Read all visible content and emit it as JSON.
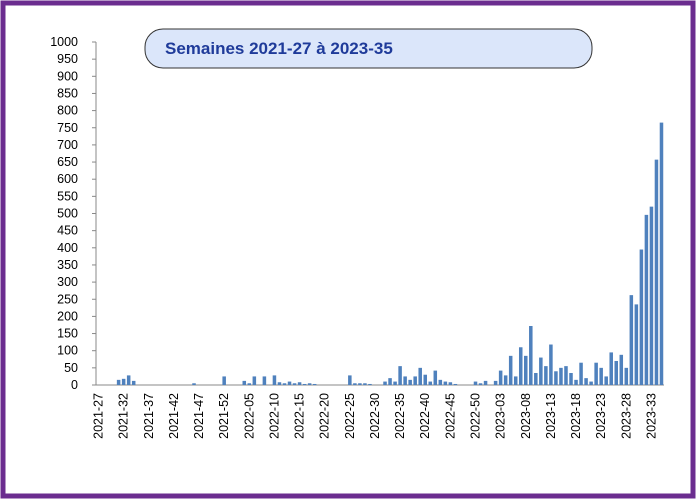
{
  "chart_data": {
    "type": "bar",
    "title": "Semaines 2021-27 à 2023-35",
    "categories": [
      "2021-27",
      null,
      null,
      null,
      null,
      "2021-32",
      null,
      null,
      null,
      null,
      "2021-37",
      null,
      null,
      null,
      null,
      "2021-42",
      null,
      null,
      null,
      null,
      "2021-47",
      null,
      null,
      null,
      null,
      "2021-52",
      null,
      null,
      null,
      null,
      "2022-05",
      null,
      null,
      null,
      null,
      "2022-10",
      null,
      null,
      null,
      null,
      "2022-15",
      null,
      null,
      null,
      null,
      "2022-20",
      null,
      null,
      null,
      null,
      "2022-25",
      null,
      null,
      null,
      null,
      "2022-30",
      null,
      null,
      null,
      null,
      "2022-35",
      null,
      null,
      null,
      null,
      "2022-40",
      null,
      null,
      null,
      null,
      "2022-45",
      null,
      null,
      null,
      null,
      "2022-50",
      null,
      null,
      null,
      null,
      "2023-03",
      null,
      null,
      null,
      null,
      "2023-08",
      null,
      null,
      null,
      null,
      "2023-13",
      null,
      null,
      null,
      null,
      "2023-18",
      null,
      null,
      null,
      null,
      "2023-23",
      null,
      null,
      null,
      null,
      "2023-28",
      null,
      null,
      null,
      null,
      "2023-33",
      null,
      null
    ],
    "values": [
      0,
      0,
      0,
      0,
      15,
      18,
      28,
      12,
      0,
      0,
      0,
      0,
      0,
      0,
      0,
      0,
      0,
      0,
      0,
      5,
      0,
      0,
      0,
      0,
      0,
      25,
      0,
      0,
      0,
      12,
      5,
      25,
      0,
      25,
      0,
      28,
      8,
      5,
      10,
      5,
      8,
      3,
      5,
      3,
      0,
      0,
      0,
      0,
      0,
      0,
      28,
      5,
      5,
      5,
      3,
      0,
      0,
      10,
      20,
      10,
      55,
      25,
      15,
      25,
      50,
      30,
      10,
      42,
      15,
      10,
      8,
      3,
      0,
      0,
      0,
      10,
      5,
      12,
      0,
      12,
      42,
      28,
      85,
      25,
      110,
      85,
      172,
      35,
      80,
      55,
      118,
      40,
      50,
      55,
      35,
      15,
      65,
      20,
      10,
      65,
      50,
      25,
      95,
      70,
      88,
      50,
      262,
      235,
      395,
      496,
      520,
      657,
      765
    ],
    "color": "#4f81bd",
    "ylim": [
      0,
      1000
    ],
    "yticks": [
      0,
      50,
      100,
      150,
      200,
      250,
      300,
      350,
      400,
      450,
      500,
      550,
      600,
      650,
      700,
      750,
      800,
      850,
      900,
      950,
      1000
    ],
    "grid": false
  }
}
